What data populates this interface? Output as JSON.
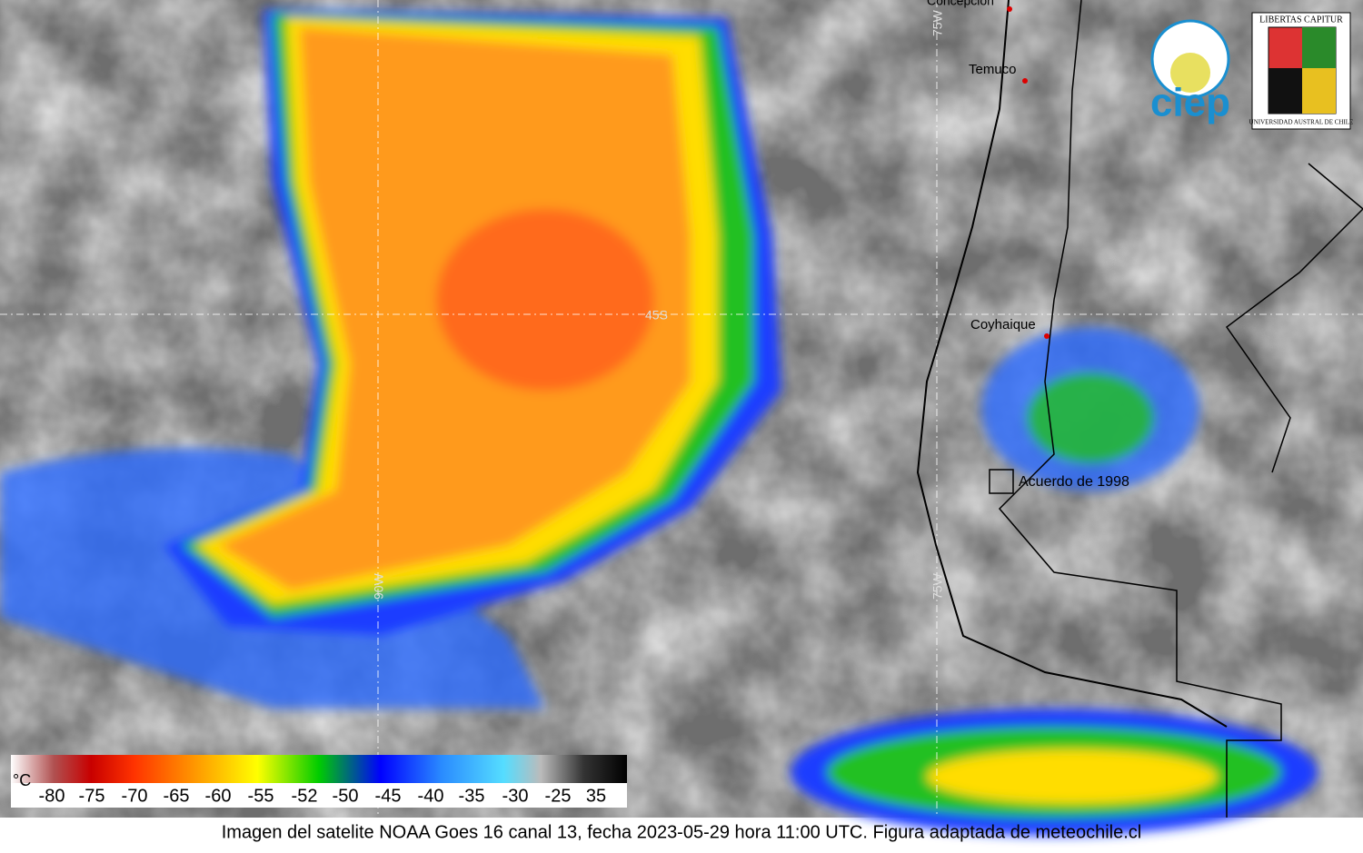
{
  "map": {
    "grid_labels": {
      "lon_75w": "75W",
      "lon_90w": "90W",
      "lat_45s": "45S"
    },
    "places": [
      "Concepción",
      "Temuco",
      "Coyhaique"
    ],
    "annotation": "Acuerdo de 1998",
    "legend": {
      "unit": "°C",
      "labels": [
        "-80",
        "-75",
        "-70",
        "-65",
        "-60",
        "-55",
        "-52",
        "-50",
        "-45",
        "-40",
        "-35",
        "-30",
        "-25",
        "35"
      ]
    },
    "logos": {
      "ciep": "ciep",
      "uach_motto": "LIBERTAS CAPITUR",
      "uach_name": "UNIVERSIDAD AUSTRAL DE CHILE"
    }
  },
  "caption": "Imagen del satelite NOAA Goes 16 canal 13, fecha 2023-05-29 hora 11:00 UTC. Figura adaptada de meteochile.cl"
}
